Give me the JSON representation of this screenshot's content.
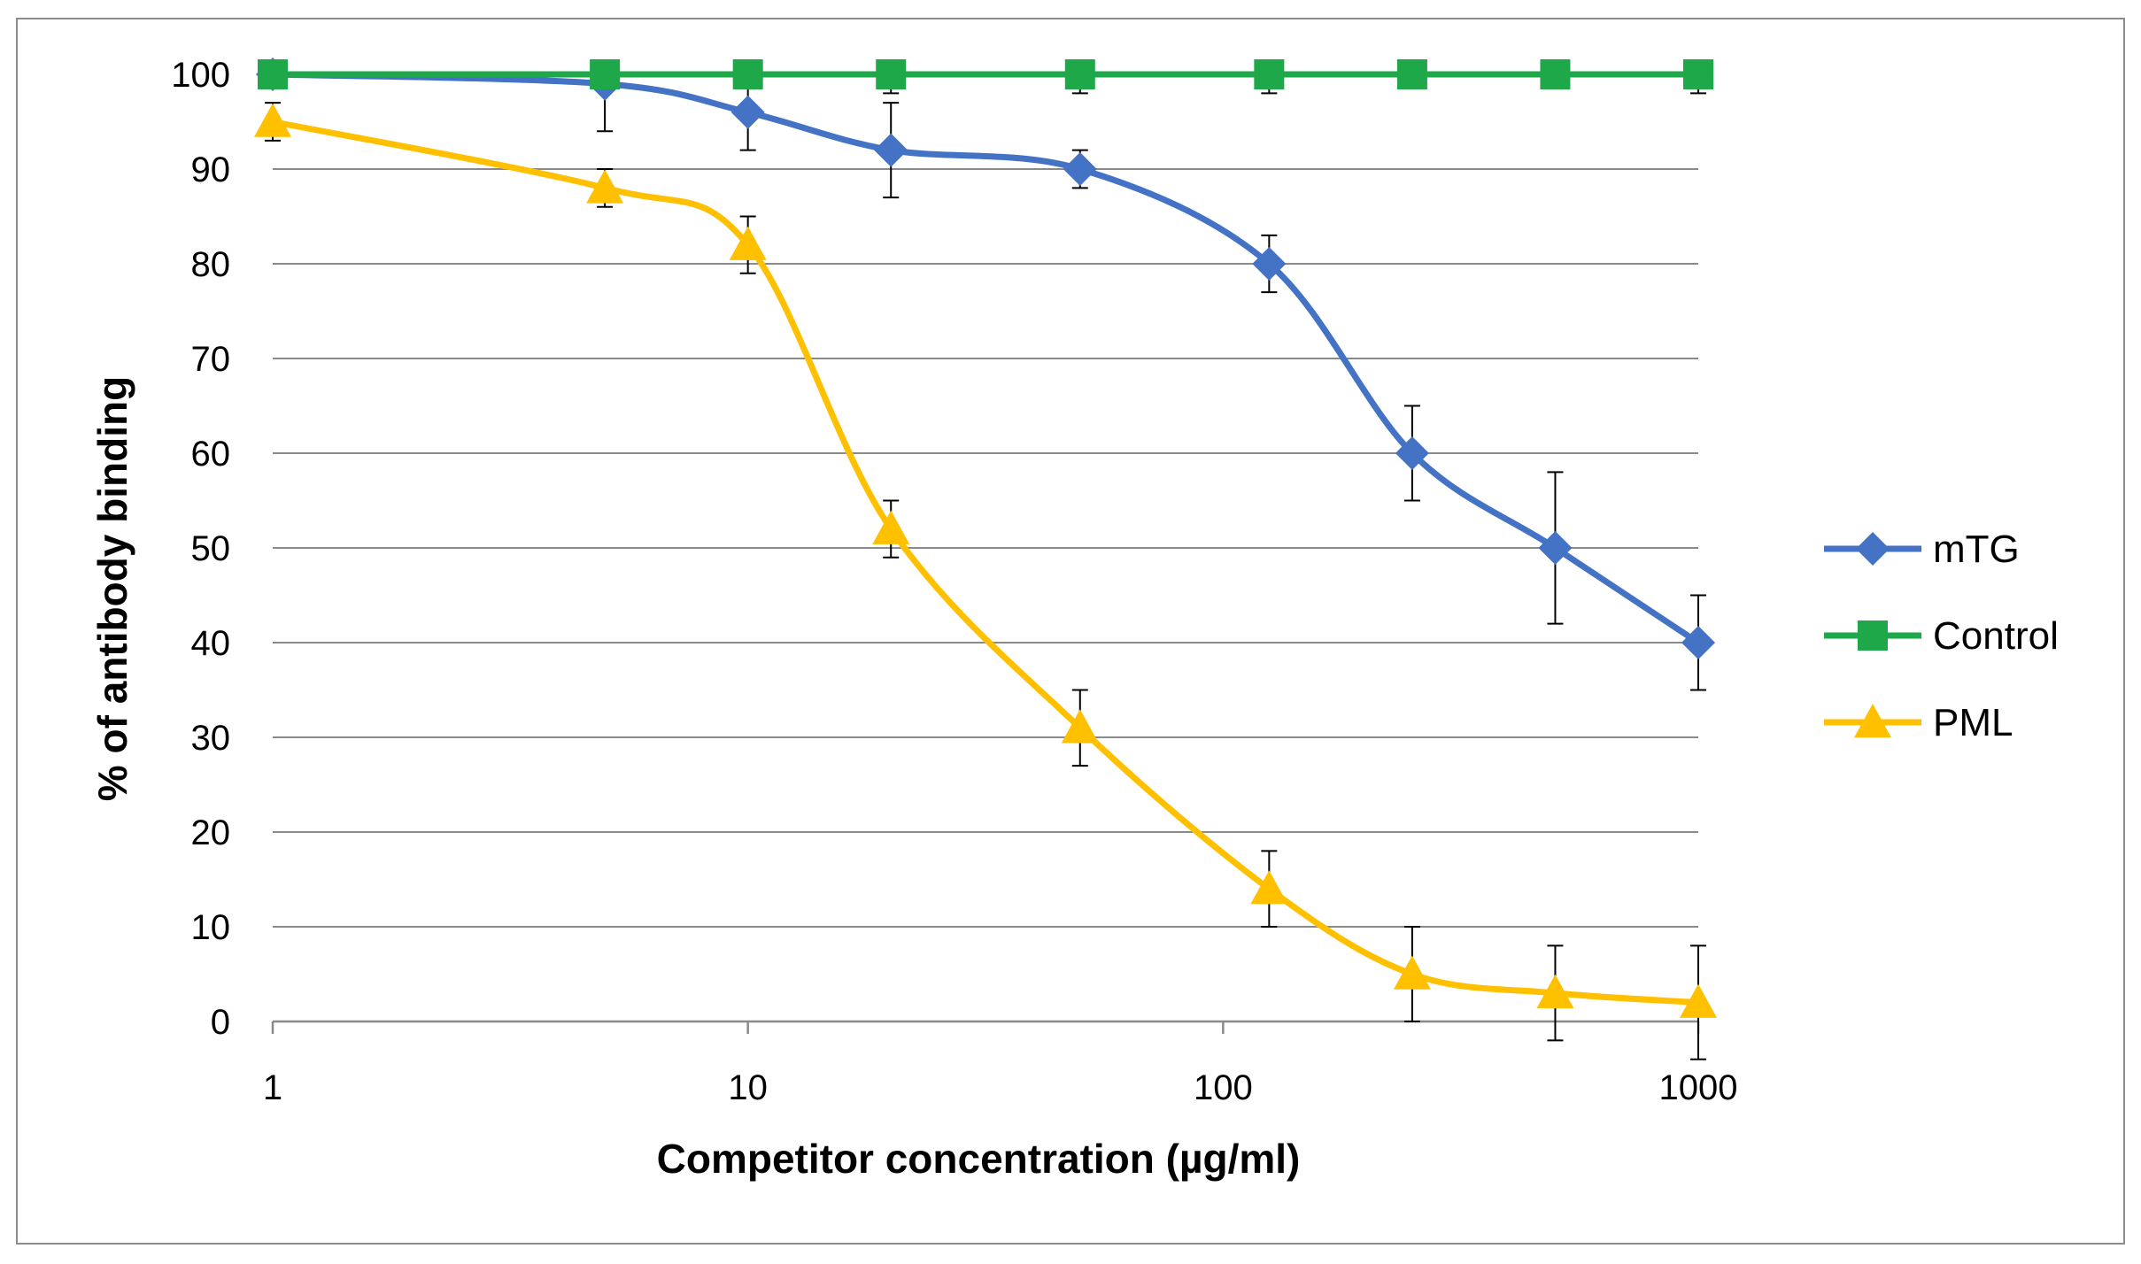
{
  "chart_data": {
    "type": "line",
    "title": "",
    "xlabel": "Competitor concentration (µg/ml)",
    "ylabel": "% of antibody binding",
    "xscale": "log",
    "xlim": [
      1,
      1000
    ],
    "ylim": [
      0,
      100
    ],
    "xticks": [
      1,
      10,
      100,
      1000
    ],
    "xtick_labels": [
      "1",
      "10",
      "100",
      "1000"
    ],
    "yticks": [
      0,
      10,
      20,
      30,
      40,
      50,
      60,
      70,
      80,
      90,
      100
    ],
    "ytick_labels": [
      "0",
      "10",
      "20",
      "30",
      "40",
      "50",
      "60",
      "70",
      "80",
      "90",
      "100"
    ],
    "grid": "horizontal",
    "legend_position": "right",
    "series": [
      {
        "name": "mTG",
        "color": "#4472c4",
        "marker": "diamond",
        "x": [
          1,
          5,
          10,
          20,
          50,
          125,
          250,
          500,
          1000
        ],
        "y": [
          100,
          99,
          96,
          92,
          90,
          80,
          60,
          50,
          40
        ],
        "err": [
          0,
          5,
          4,
          5,
          2,
          3,
          5,
          8,
          5
        ]
      },
      {
        "name": "Control",
        "color": "#1fa84a",
        "marker": "square",
        "x": [
          1,
          5,
          10,
          20,
          50,
          125,
          250,
          500,
          1000
        ],
        "y": [
          100,
          100,
          100,
          100,
          100,
          100,
          100,
          100,
          100
        ],
        "err": [
          0,
          0,
          0,
          2,
          2,
          2,
          0,
          0,
          2
        ]
      },
      {
        "name": "PML",
        "color": "#ffc000",
        "marker": "triangle",
        "x": [
          1,
          5,
          10,
          20,
          50,
          125,
          250,
          500,
          1000
        ],
        "y": [
          95,
          88,
          82,
          52,
          31,
          14,
          5,
          3,
          2
        ],
        "err": [
          2,
          2,
          3,
          3,
          4,
          4,
          5,
          5,
          6
        ]
      }
    ]
  }
}
